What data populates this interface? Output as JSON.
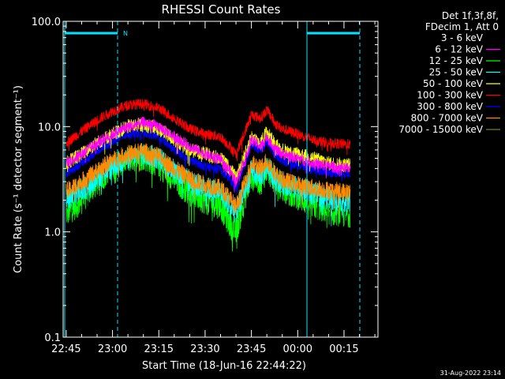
{
  "chart_data": {
    "type": "line",
    "title": "RHESSI Count Rates",
    "xlabel": "Start Time (18-Jun-16 22:44:22)",
    "ylabel": "Count Rate (s⁻¹ detector segment⁻¹)",
    "y_scale": "log",
    "ylim": [
      0.1,
      100
    ],
    "xlim": [
      "22:44",
      "00:26"
    ],
    "y_ticks": [
      "0.1",
      "1.0",
      "10.0",
      "100.0"
    ],
    "x_ticks": [
      "22:45",
      "23:00",
      "23:15",
      "23:30",
      "23:45",
      "00:00",
      "00:15"
    ],
    "legend_position": "top-right",
    "legend_header": [
      "Det 1f,3f,8f,",
      "FDecim 1, Att 0"
    ],
    "night_marker_label": "N",
    "timestamp": "31-Aug-2022 23:14",
    "colors": {
      "axes": "#ffffff",
      "marker": "#00e5ff"
    },
    "x_times": [
      "22:45",
      "22:50",
      "22:55",
      "23:00",
      "23:05",
      "23:10",
      "23:15",
      "23:20",
      "23:25",
      "23:30",
      "23:35",
      "23:38",
      "23:40",
      "23:43",
      "23:45",
      "23:48",
      "23:50",
      "23:53",
      "23:55",
      "00:00",
      "00:05",
      "00:10",
      "00:15",
      "00:17"
    ],
    "series": [
      {
        "name": "3 - 6 keV",
        "color": "#000000",
        "values": [
          2.2,
          2.8,
          4.0,
          5.5,
          7.0,
          8.0,
          7.0,
          5.0,
          3.8,
          3.2,
          3.0,
          2.5,
          2.2,
          3.5,
          5.0,
          4.8,
          6.0,
          4.0,
          3.5,
          3.0,
          2.5,
          2.2,
          2.0,
          2.0
        ]
      },
      {
        "name": "6 - 12 keV",
        "color": "#ff00ff",
        "values": [
          4.5,
          5.5,
          7.0,
          8.5,
          10.0,
          11.0,
          10.0,
          8.0,
          6.5,
          5.5,
          4.8,
          3.8,
          3.0,
          5.0,
          7.5,
          6.5,
          8.0,
          6.0,
          5.5,
          5.0,
          4.5,
          4.2,
          4.0,
          4.0
        ]
      },
      {
        "name": "12 - 25 keV",
        "color": "#00ff00",
        "values": [
          1.5,
          2.0,
          3.0,
          4.2,
          5.0,
          5.2,
          4.5,
          3.2,
          2.4,
          2.0,
          1.8,
          1.2,
          1.0,
          2.2,
          3.5,
          3.0,
          4.0,
          3.0,
          2.6,
          2.2,
          1.8,
          1.6,
          1.5,
          1.5
        ]
      },
      {
        "name": "25 - 50 keV",
        "color": "#00ffff",
        "values": [
          2.0,
          2.5,
          3.3,
          4.3,
          5.0,
          5.5,
          5.0,
          3.8,
          3.0,
          2.6,
          2.4,
          1.8,
          1.5,
          2.6,
          3.8,
          3.4,
          4.2,
          3.2,
          2.9,
          2.6,
          2.3,
          2.1,
          2.0,
          2.0
        ]
      },
      {
        "name": "50 - 100 keV",
        "color": "#ffff00",
        "values": [
          4.5,
          5.5,
          7.0,
          8.5,
          10.0,
          10.5,
          9.5,
          7.5,
          6.0,
          5.5,
          5.0,
          4.0,
          3.2,
          5.5,
          8.0,
          7.0,
          9.0,
          6.5,
          6.0,
          5.5,
          5.0,
          4.5,
          4.3,
          4.3
        ]
      },
      {
        "name": "100 - 300 keV",
        "color": "#ff0000",
        "values": [
          7.0,
          9.0,
          11.5,
          14.0,
          16.0,
          16.5,
          15.0,
          12.0,
          9.5,
          8.5,
          8.0,
          6.5,
          5.5,
          9.0,
          13.0,
          12.0,
          14.5,
          10.5,
          9.5,
          8.5,
          7.5,
          7.0,
          6.8,
          6.8
        ]
      },
      {
        "name": "300 - 800 keV",
        "color": "#0000ff",
        "values": [
          3.6,
          4.5,
          5.8,
          7.2,
          8.5,
          8.8,
          8.0,
          6.0,
          4.8,
          4.2,
          3.9,
          3.2,
          2.5,
          4.5,
          6.8,
          6.0,
          7.2,
          5.2,
          4.8,
          4.3,
          3.9,
          3.7,
          3.6,
          3.6
        ]
      },
      {
        "name": "800 - 7000 keV",
        "color": "#ff8c00",
        "values": [
          2.4,
          3.0,
          3.8,
          4.8,
          5.5,
          5.8,
          5.2,
          4.0,
          3.2,
          2.8,
          2.6,
          2.1,
          1.7,
          3.0,
          4.5,
          4.0,
          4.8,
          3.5,
          3.1,
          2.8,
          2.6,
          2.5,
          2.4,
          2.4
        ]
      },
      {
        "name": "7000 - 15000 keV",
        "color": "#808000",
        "values": []
      }
    ]
  }
}
